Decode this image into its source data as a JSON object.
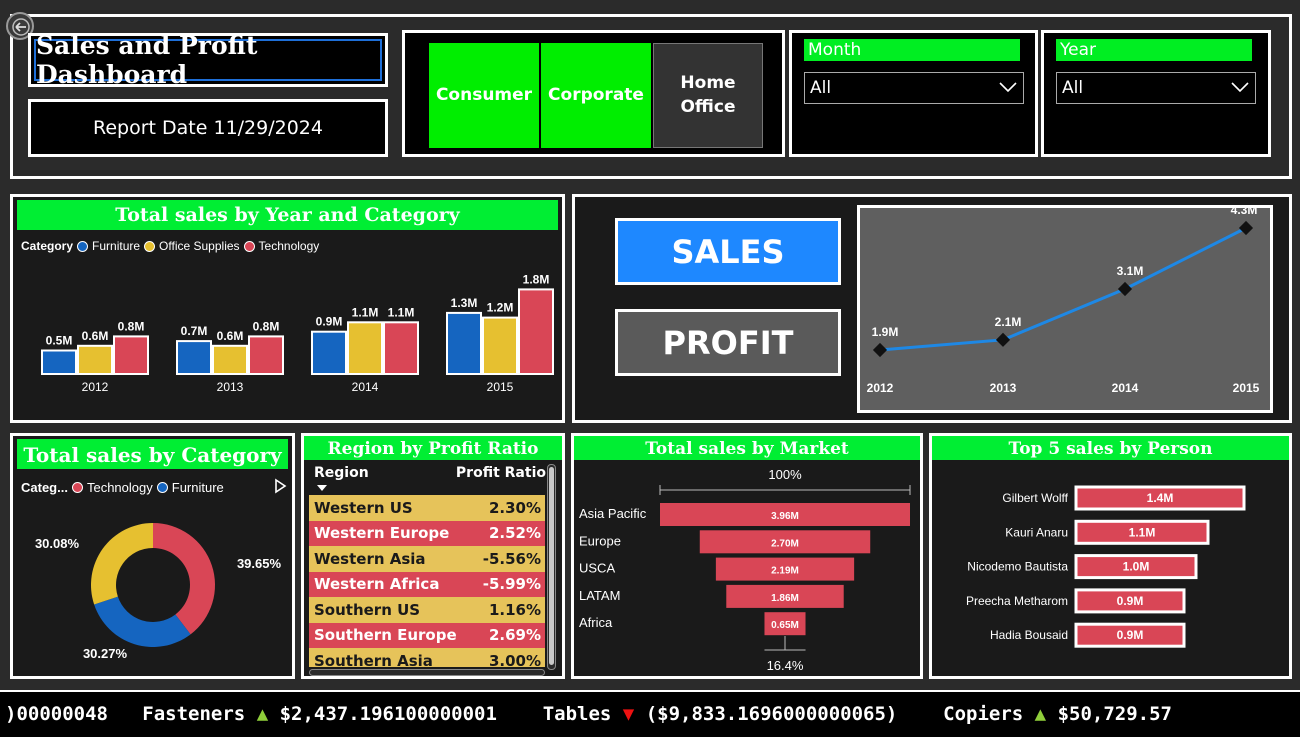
{
  "header": {
    "title": "Sales and Profit Dashboard",
    "report_date": "Report Date 11/29/2024"
  },
  "segments": [
    {
      "label": "Consumer",
      "active": true
    },
    {
      "label": "Corporate",
      "active": true
    },
    {
      "label": "Home Office",
      "active": false
    }
  ],
  "slicers": {
    "month": {
      "title": "Month",
      "value": "All"
    },
    "year": {
      "title": "Year",
      "value": "All"
    }
  },
  "kpi_buttons": {
    "sales": "SALES",
    "profit": "PROFIT"
  },
  "colors": {
    "accent_green": "#00ee33",
    "furniture": "#1565c0",
    "office_supplies": "#e6c030",
    "technology": "#d94656",
    "line_blue": "#1e88e5",
    "kpi_sales_bg": "#1e88ff",
    "kpi_profit_bg": "#5a5a5a"
  },
  "icons": {
    "back": "back-arrow-icon",
    "chevron": "chevron-down-icon",
    "legend_next": "play-right-icon",
    "up": "up-triangle-icon",
    "down": "down-triangle-icon"
  },
  "chart_data": [
    {
      "id": "year_category",
      "type": "bar",
      "title": "Total sales by Year and Category",
      "legend_title": "Category",
      "categories": [
        "2012",
        "2013",
        "2014",
        "2015"
      ],
      "series": [
        {
          "name": "Furniture",
          "values": [
            0.5,
            0.7,
            0.9,
            1.3
          ],
          "labels": [
            "0.5M",
            "0.7M",
            "0.9M",
            "1.3M"
          ]
        },
        {
          "name": "Office Supplies",
          "values": [
            0.6,
            0.6,
            1.1,
            1.2
          ],
          "labels": [
            "0.6M",
            "0.6M",
            "1.1M",
            "1.2M"
          ]
        },
        {
          "name": "Technology",
          "values": [
            0.8,
            0.8,
            1.1,
            1.8
          ],
          "labels": [
            "0.8M",
            "0.8M",
            "1.1M",
            "1.8M"
          ]
        }
      ]
    },
    {
      "id": "sales_trend",
      "type": "line",
      "x": [
        "2012",
        "2013",
        "2014",
        "2015"
      ],
      "values": [
        1.9,
        2.1,
        3.1,
        4.3
      ],
      "labels": [
        "1.9M",
        "2.1M",
        "3.1M",
        "4.3M"
      ]
    },
    {
      "id": "category_donut",
      "type": "pie",
      "title": "Total sales by Category",
      "legend_title": "Categ...",
      "legend_items": [
        "Technology",
        "Furniture"
      ],
      "slices": [
        {
          "name": "Technology",
          "value": 39.65,
          "label": "39.65%"
        },
        {
          "name": "Furniture",
          "value": 30.27,
          "label": "30.27%"
        },
        {
          "name": "Office Supplies",
          "value": 30.08,
          "label": "30.08%"
        }
      ]
    },
    {
      "id": "region_profit",
      "type": "table",
      "title": "Region by Profit Ratio",
      "columns": [
        "Region",
        "Profit Ratio"
      ],
      "rows": [
        [
          "Western US",
          "2.30%"
        ],
        [
          "Western Europe",
          "2.52%"
        ],
        [
          "Western Asia",
          "-5.56%"
        ],
        [
          "Western Africa",
          "-5.99%"
        ],
        [
          "Southern US",
          "1.16%"
        ],
        [
          "Southern Europe",
          "2.69%"
        ],
        [
          "Southern Asia",
          "3.00%"
        ]
      ]
    },
    {
      "id": "market_funnel",
      "type": "bar",
      "title": "Total sales by Market",
      "top_label": "100%",
      "bottom_label": "16.4%",
      "categories": [
        "Asia Pacific",
        "Europe",
        "USCA",
        "LATAM",
        "Africa"
      ],
      "values": [
        3.96,
        2.7,
        2.19,
        1.86,
        0.65
      ],
      "labels": [
        "3.96M",
        "2.70M",
        "2.19M",
        "1.86M",
        "0.65M"
      ]
    },
    {
      "id": "top_persons",
      "type": "bar",
      "title": "Top 5 sales by Person",
      "categories": [
        "Gilbert Wolff",
        "Kauri Anaru",
        "Nicodemo Bautista",
        "Preecha Metharom",
        "Hadia Bousaid"
      ],
      "values": [
        1.4,
        1.1,
        1.0,
        0.9,
        0.9
      ],
      "labels": [
        "1.4M",
        "1.1M",
        "1.0M",
        "0.9M",
        "0.9M"
      ]
    }
  ],
  "ticker": {
    "lead": ")00000048",
    "items": [
      {
        "name": "Fasteners",
        "dir": "up",
        "value": "$2,437.196100000001"
      },
      {
        "name": "Tables",
        "dir": "down",
        "value": "($9,833.1696000000065)"
      },
      {
        "name": "Copiers",
        "dir": "up",
        "value": "$50,729.57"
      }
    ]
  }
}
